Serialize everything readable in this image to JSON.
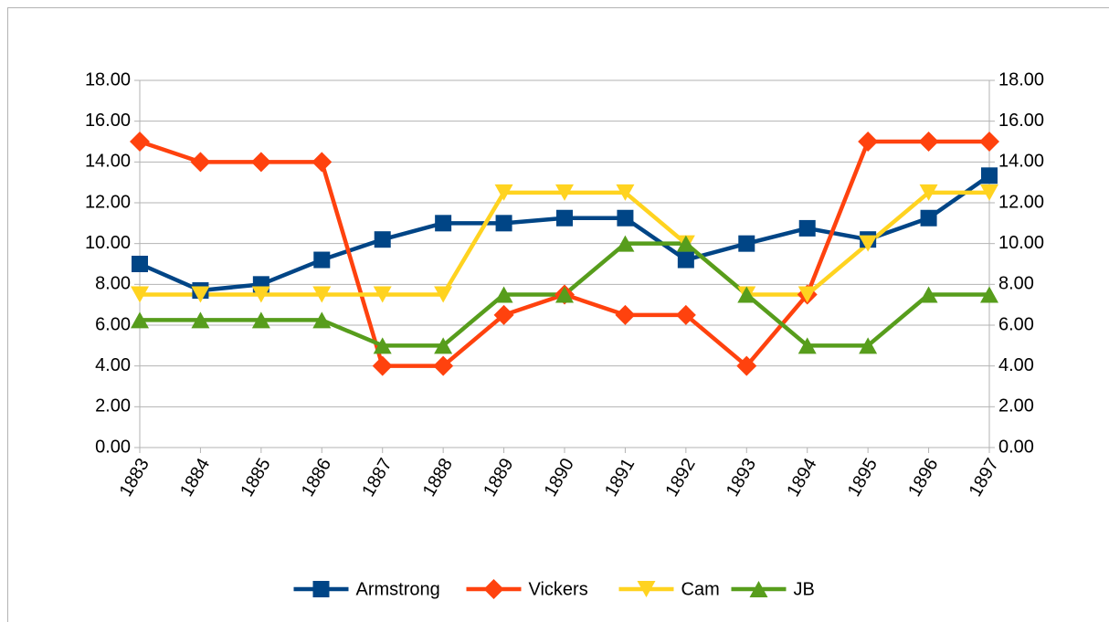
{
  "chart_data": {
    "type": "line",
    "categories": [
      "1883",
      "1884",
      "1885",
      "1886",
      "1887",
      "1888",
      "1889",
      "1890",
      "1891",
      "1892",
      "1893",
      "1894",
      "1895",
      "1896",
      "1897"
    ],
    "series": [
      {
        "name": "Armstrong",
        "color": "#004586",
        "marker": "square",
        "values": [
          9.0,
          7.7,
          8.0,
          9.2,
          10.2,
          11.0,
          11.0,
          11.25,
          11.25,
          9.2,
          10.0,
          10.75,
          10.2,
          11.25,
          13.33
        ]
      },
      {
        "name": "Vickers",
        "color": "#ff420e",
        "marker": "diamond",
        "values": [
          15,
          14,
          14,
          14,
          4,
          4,
          6.5,
          7.5,
          6.5,
          6.5,
          4,
          7.5,
          15,
          15,
          15
        ]
      },
      {
        "name": "Cam",
        "color": "#ffd320",
        "marker": "triangle-down",
        "values": [
          7.5,
          7.5,
          7.5,
          7.5,
          7.5,
          7.5,
          12.5,
          12.5,
          12.5,
          10,
          7.5,
          7.5,
          10,
          12.5,
          12.5
        ]
      },
      {
        "name": "JB",
        "color": "#579d1c",
        "marker": "triangle-up",
        "values": [
          6.25,
          6.25,
          6.25,
          6.25,
          5,
          5,
          7.5,
          7.5,
          10,
          10,
          7.5,
          5,
          5,
          7.5,
          7.5
        ]
      }
    ],
    "ylim": [
      0,
      18
    ],
    "yticks": [
      {
        "value": 0,
        "label": "0.00"
      },
      {
        "value": 2,
        "label": "2.00"
      },
      {
        "value": 4,
        "label": "4.00"
      },
      {
        "value": 6,
        "label": "6.00"
      },
      {
        "value": 8,
        "label": "8.00"
      },
      {
        "value": 10,
        "label": "10.00"
      },
      {
        "value": 12,
        "label": "12.00"
      },
      {
        "value": 14,
        "label": "14.00"
      },
      {
        "value": 16,
        "label": "16.00"
      },
      {
        "value": 18,
        "label": "18.00"
      }
    ],
    "y2lim": [
      0,
      18
    ],
    "y2ticks": [
      {
        "value": 0,
        "label": "0.00"
      },
      {
        "value": 2,
        "label": "2.00"
      },
      {
        "value": 4,
        "label": "4.00"
      },
      {
        "value": 6,
        "label": "6.00"
      },
      {
        "value": 8,
        "label": "8.00"
      },
      {
        "value": 10,
        "label": "10.00"
      },
      {
        "value": 12,
        "label": "12.00"
      },
      {
        "value": 14,
        "label": "14.00"
      },
      {
        "value": 16,
        "label": "16.00"
      },
      {
        "value": 18,
        "label": "18.00"
      }
    ],
    "grid": true,
    "legend": "bottom"
  }
}
